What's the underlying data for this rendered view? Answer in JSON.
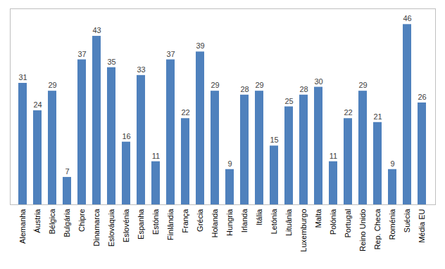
{
  "chart_data": {
    "type": "bar",
    "categories": [
      "Alemanha",
      "Áustria",
      "Bélgica",
      "Bulgária",
      "Chipre",
      "Dinamarca",
      "Eslováquia",
      "Eslovénia",
      "Espanha",
      "Estónia",
      "Finlândia",
      "França",
      "Grécia",
      "Holanda",
      "Hungria",
      "Irlanda",
      "Itália",
      "Letónia",
      "Lituânia",
      "Luxemburgo",
      "Malta",
      "Polónia",
      "Portugal",
      "Reino Unido",
      "Rep. Checa",
      "Roménia",
      "Suécia",
      "Média EU"
    ],
    "values": [
      31,
      24,
      29,
      7,
      37,
      43,
      35,
      16,
      33,
      11,
      37,
      22,
      39,
      29,
      9,
      28,
      29,
      15,
      25,
      28,
      30,
      11,
      22,
      29,
      21,
      9,
      46,
      26
    ],
    "color": "#4f81bd",
    "ylim": [
      0,
      50
    ],
    "yticks": [],
    "grid": false,
    "data_labels": true,
    "tick_labels": "x"
  }
}
